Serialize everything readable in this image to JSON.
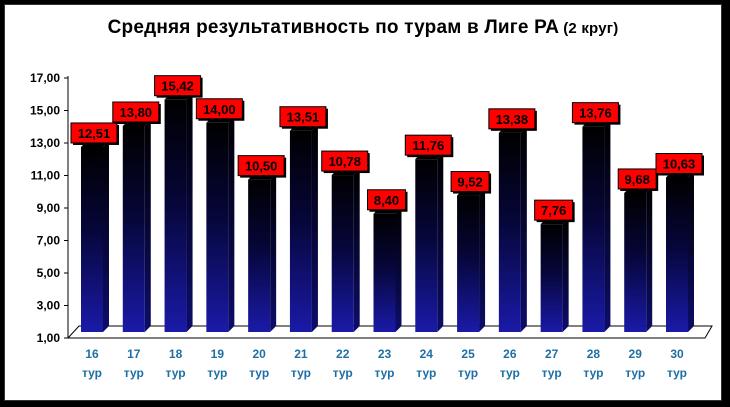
{
  "chart_data": {
    "type": "bar",
    "title": "Средняя результативность по турам в Лиге РА",
    "subtitle": "(2 круг)",
    "categories": [
      "16",
      "17",
      "18",
      "19",
      "20",
      "21",
      "22",
      "23",
      "24",
      "25",
      "26",
      "27",
      "28",
      "29",
      "30"
    ],
    "category_suffix": "тур",
    "values": [
      12.51,
      13.8,
      15.42,
      14.0,
      10.5,
      13.51,
      10.78,
      8.4,
      11.76,
      9.52,
      13.38,
      7.76,
      13.76,
      9.68,
      10.63
    ],
    "value_labels": [
      "12,51",
      "13,80",
      "15,42",
      "14,00",
      "10,50",
      "13,51",
      "10,78",
      "8,40",
      "11,76",
      "9,52",
      "13,38",
      "7,76",
      "13,76",
      "9,68",
      "10,63"
    ],
    "ylim": [
      1,
      17
    ],
    "y_ticks": [
      "1,00",
      "3,00",
      "5,00",
      "7,00",
      "9,00",
      "11,00",
      "13,00",
      "15,00",
      "17,00"
    ],
    "grid": false,
    "legend": "none",
    "colors": {
      "bar_top": "#000000",
      "bar_bottom": "#1a1aa8",
      "label_box": "#ff0000",
      "category_text": "#1d6fa5"
    }
  }
}
